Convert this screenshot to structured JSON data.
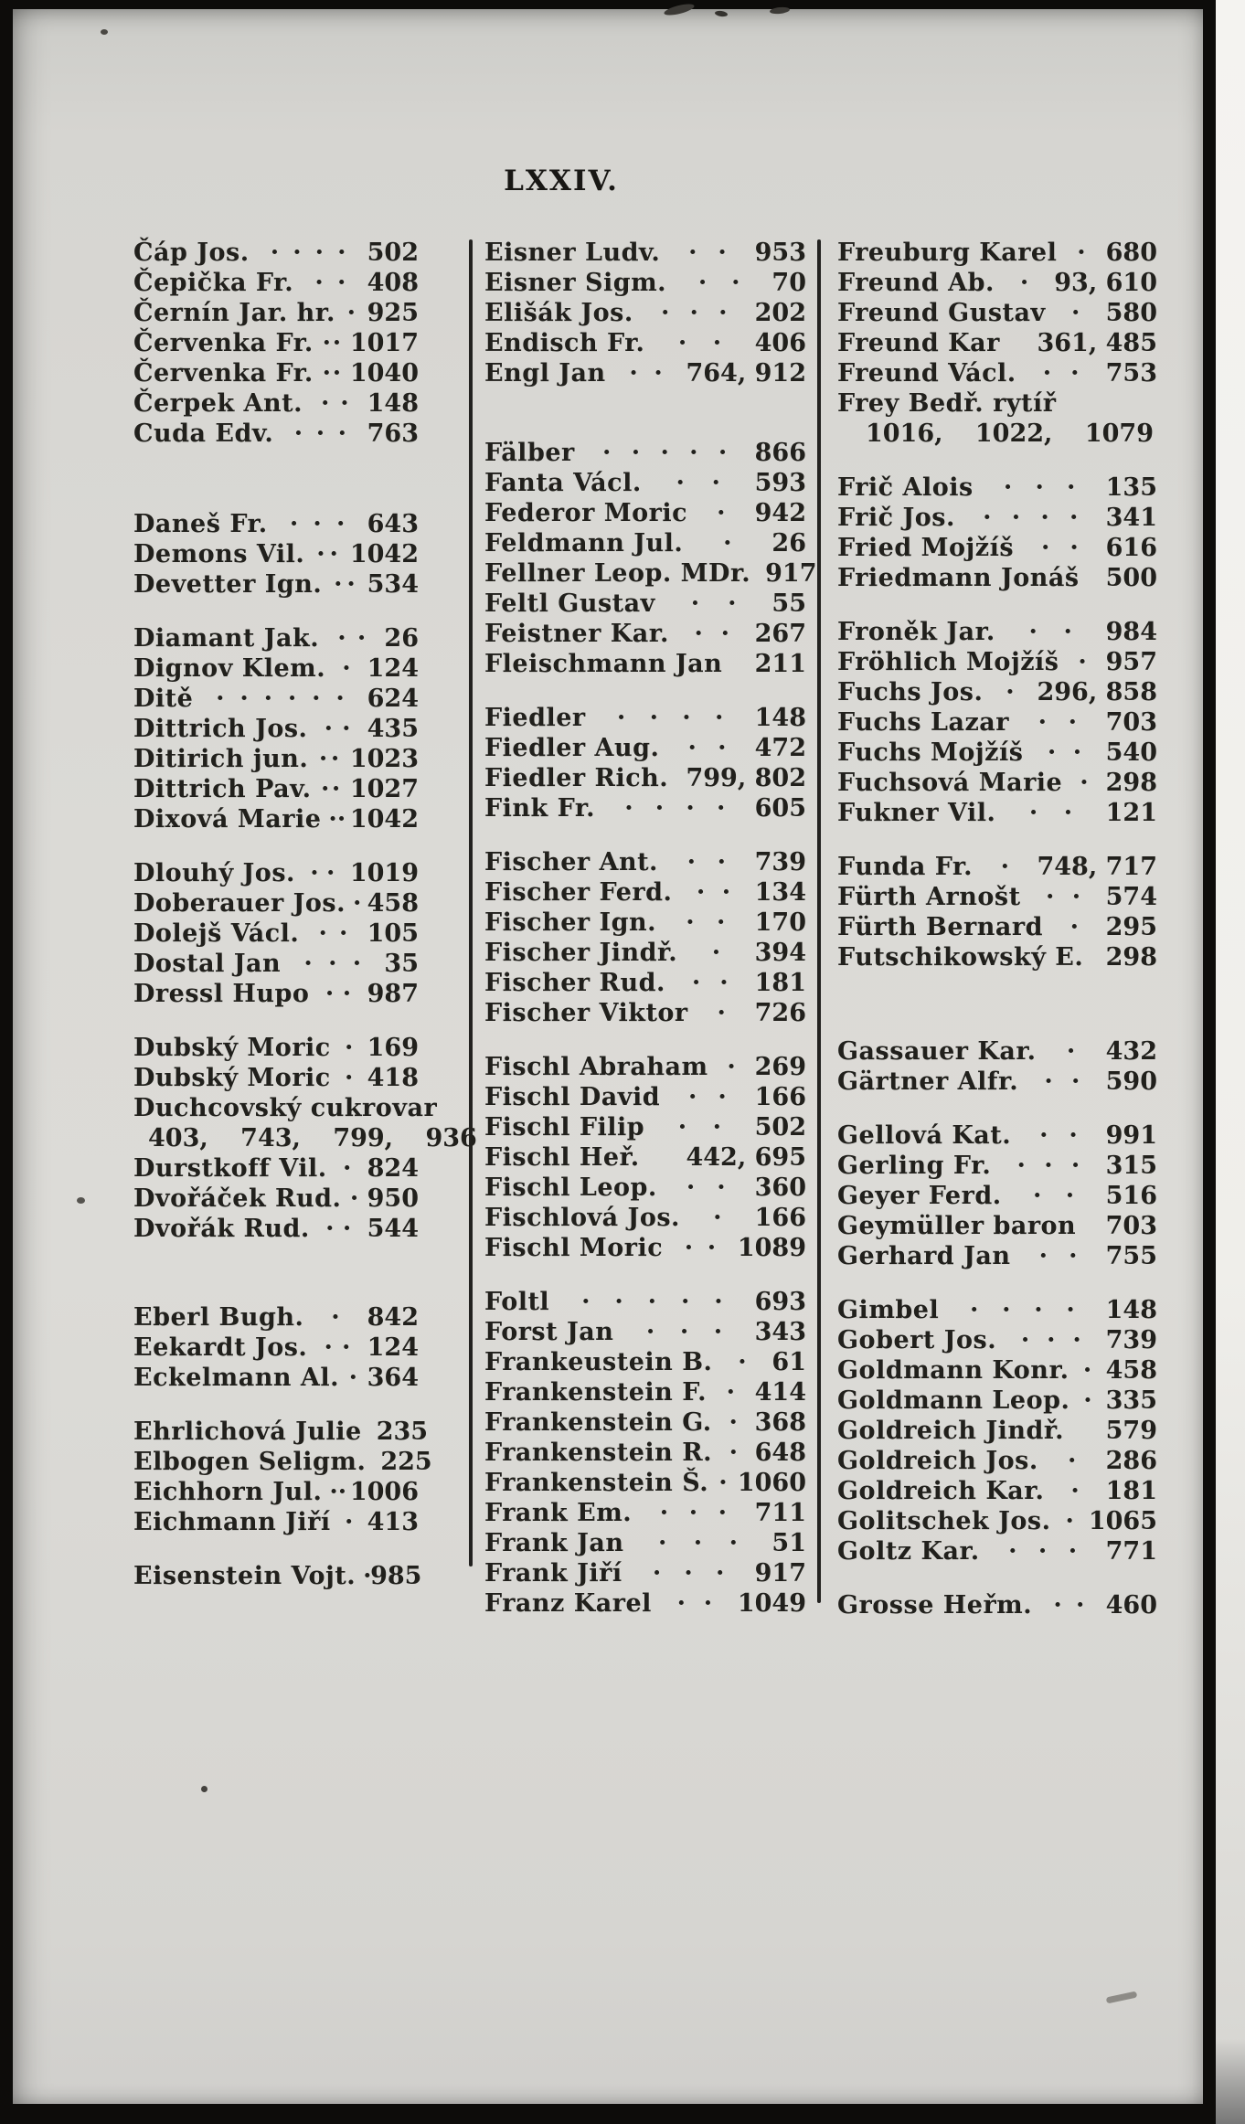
{
  "page_title": "LXXIV.",
  "ink_color": "#21201c",
  "paper_color": "#dbdad6",
  "columns": [
    {
      "groups": [
        [
          {
            "name": "Čáp Jos.",
            "dots": "· · · ·",
            "pages": "502"
          },
          {
            "name": "Čepička Fr.",
            "dots": "· ·",
            "pages": "408"
          },
          {
            "name": "Černín Jar. hr.",
            "dots": "·",
            "pages": "925"
          },
          {
            "name": "Červenka Fr.",
            "dots": "· ·",
            "pages": "1017"
          },
          {
            "name": "Červenka Fr.",
            "dots": "· ·",
            "pages": "1040"
          },
          {
            "name": "Čerpek Ant.",
            "dots": "· ·",
            "pages": "148"
          },
          {
            "name": "Cuda Edv.",
            "dots": "· · ·",
            "pages": "763"
          }
        ],
        [
          {
            "name": "Daneš Fr.",
            "dots": "· · ·",
            "pages": "643"
          },
          {
            "name": "Demons Vil.",
            "dots": "· ·",
            "pages": "1042"
          },
          {
            "name": "Devetter Ign.",
            "dots": "· ·",
            "pages": "534"
          }
        ],
        [
          {
            "name": "Diamant Jak.",
            "dots": "· ·",
            "pages": "26"
          },
          {
            "name": "Dignov Klem.",
            "dots": "·",
            "pages": "124"
          },
          {
            "name": "Ditě",
            "dots": "· · · · · ·",
            "pages": "624"
          },
          {
            "name": "Dittrich Jos.",
            "dots": "· ·",
            "pages": "435"
          },
          {
            "name": "Ditirich jun.",
            "dots": "· ·",
            "pages": "1023"
          },
          {
            "name": "Dittrich Pav.",
            "dots": "· ·",
            "pages": "1027"
          },
          {
            "name": "Dixová Marie",
            "dots": "· ·",
            "pages": "1042"
          }
        ],
        [
          {
            "name": "Dlouhý Jos.",
            "dots": "· ·",
            "pages": "1019"
          },
          {
            "name": "Doberauer Jos.",
            "dots": "·",
            "pages": "458"
          },
          {
            "name": "Dolejš Václ.",
            "dots": "· ·",
            "pages": "105"
          },
          {
            "name": "Dostal Jan",
            "dots": "· · ·",
            "pages": "35"
          },
          {
            "name": "Dressl Hupo",
            "dots": "· ·",
            "pages": "987"
          }
        ],
        [
          {
            "name": "Dubský Moric",
            "dots": "·",
            "pages": "169"
          },
          {
            "name": "Dubský Moric",
            "dots": "·",
            "pages": "418"
          },
          {
            "name": "Duchcovský cukrovar",
            "dots": "",
            "pages": ""
          },
          {
            "name": "",
            "dots": "",
            "pages": "403, 743, 799, 936",
            "cont": true
          },
          {
            "name": "Durstkoff Vil.",
            "dots": "·",
            "pages": "824"
          },
          {
            "name": "Dvořáček Rud.",
            "dots": "·",
            "pages": "950"
          },
          {
            "name": "Dvořák Rud.",
            "dots": "· ·",
            "pages": "544"
          }
        ],
        [
          {
            "name": "Eberl Bugh.",
            "dots": "·",
            "pages": "842"
          },
          {
            "name": "Eekardt Jos.",
            "dots": "· ·",
            "pages": "124"
          },
          {
            "name": "Eckelmann Al.",
            "dots": "·",
            "pages": "364"
          }
        ],
        [
          {
            "name": "Ehrlichová Julie",
            "dots": "",
            "pages": "235"
          },
          {
            "name": "Elbogen Seligm.",
            "dots": "",
            "pages": "225"
          },
          {
            "name": "Eichhorn Jul.",
            "dots": "· ·",
            "pages": "1006"
          },
          {
            "name": "Eichmann Jiří",
            "dots": "·",
            "pages": "413"
          }
        ],
        [
          {
            "name": "Eisenstein Vojt.",
            "dots": "·",
            "pages": "985"
          }
        ]
      ]
    },
    {
      "groups": [
        [
          {
            "name": "Eisner Ludv.",
            "dots": "· ·",
            "pages": "953"
          },
          {
            "name": "Eisner Sigm.",
            "dots": "· ·",
            "pages": "70"
          },
          {
            "name": "Elišák Jos.",
            "dots": "· · ·",
            "pages": "202"
          },
          {
            "name": "Endisch Fr.",
            "dots": "· ·",
            "pages": "406"
          },
          {
            "name": "Engl Jan",
            "dots": "· ·",
            "pages": "764, 912"
          }
        ],
        [
          {
            "name": "Fälber",
            "dots": "· · · · ·",
            "pages": "866"
          },
          {
            "name": "Fanta Václ.",
            "dots": "· ·",
            "pages": "593"
          },
          {
            "name": "Federor Moric",
            "dots": "·",
            "pages": "942"
          },
          {
            "name": "Feldmann Jul.",
            "dots": "·",
            "pages": "26"
          },
          {
            "name": "Fellner Leop. MDr.",
            "dots": "",
            "pages": "917"
          },
          {
            "name": "Feltl Gustav",
            "dots": "· ·",
            "pages": "55"
          },
          {
            "name": "Feistner Kar.",
            "dots": "· ·",
            "pages": "267"
          },
          {
            "name": "Fleischmann Jan",
            "dots": "",
            "pages": "211"
          }
        ],
        [
          {
            "name": "Fiedler",
            "dots": "· · · ·",
            "pages": "148"
          },
          {
            "name": "Fiedler Aug.",
            "dots": "· ·",
            "pages": "472"
          },
          {
            "name": "Fiedler Rich.",
            "dots": "",
            "pages": "799, 802"
          },
          {
            "name": "Fink Fr.",
            "dots": "· · · ·",
            "pages": "605"
          }
        ],
        [
          {
            "name": "Fischer Ant.",
            "dots": "· ·",
            "pages": "739"
          },
          {
            "name": "Fischer Ferd.",
            "dots": "· ·",
            "pages": "134"
          },
          {
            "name": "Fischer Ign.",
            "dots": "· ·",
            "pages": "170"
          },
          {
            "name": "Fischer Jindř.",
            "dots": "·",
            "pages": "394"
          },
          {
            "name": "Fischer Rud.",
            "dots": "· ·",
            "pages": "181"
          },
          {
            "name": "Fischer Viktor",
            "dots": "·",
            "pages": "726"
          }
        ],
        [
          {
            "name": "Fischl Abraham",
            "dots": "·",
            "pages": "269"
          },
          {
            "name": "Fischl David",
            "dots": "· ·",
            "pages": "166"
          },
          {
            "name": "Fischl Filip",
            "dots": "· ·",
            "pages": "502"
          },
          {
            "name": "Fischl Heř.",
            "dots": "",
            "pages": "442, 695"
          },
          {
            "name": "Fischl Leop.",
            "dots": "· ·",
            "pages": "360"
          },
          {
            "name": "Fischlová Jos.",
            "dots": "·",
            "pages": "166"
          },
          {
            "name": "Fischl Moric",
            "dots": "· ·",
            "pages": "1089"
          }
        ],
        [
          {
            "name": "Foltl",
            "dots": "· · · · ·",
            "pages": "693"
          },
          {
            "name": "Forst Jan",
            "dots": "· · ·",
            "pages": "343"
          },
          {
            "name": "Frankeustein B.",
            "dots": "·",
            "pages": "61"
          },
          {
            "name": "Frankenstein F.",
            "dots": "·",
            "pages": "414"
          },
          {
            "name": "Frankenstein G.",
            "dots": "·",
            "pages": "368"
          },
          {
            "name": "Frankenstein R.",
            "dots": "·",
            "pages": "648"
          },
          {
            "name": "Frankenstein Š.",
            "dots": "·",
            "pages": "1060"
          },
          {
            "name": "Frank Em.",
            "dots": "· · ·",
            "pages": "711"
          },
          {
            "name": "Frank Jan",
            "dots": "· · ·",
            "pages": "51"
          },
          {
            "name": "Frank Jiří",
            "dots": "· · ·",
            "pages": "917"
          },
          {
            "name": "Franz Karel",
            "dots": "· ·",
            "pages": "1049"
          }
        ]
      ]
    },
    {
      "groups": [
        [
          {
            "name": "Freuburg Karel",
            "dots": "·",
            "pages": "680"
          },
          {
            "name": "Freund Ab.",
            "dots": "·",
            "pages": "93, 610"
          },
          {
            "name": "Freund Gustav",
            "dots": "·",
            "pages": "580"
          },
          {
            "name": "Freund Kar",
            "dots": "",
            "pages": "361, 485"
          },
          {
            "name": "Freund Václ.",
            "dots": "· ·",
            "pages": "753"
          },
          {
            "name": "Frey Bedř. rytíř",
            "dots": "",
            "pages": ""
          },
          {
            "name": "",
            "dots": "",
            "pages": "1016, 1022, 1079",
            "cont": true
          }
        ],
        [
          {
            "name": "Frič Alois",
            "dots": "· · ·",
            "pages": "135"
          },
          {
            "name": "Frič Jos.",
            "dots": "· · · ·",
            "pages": "341"
          },
          {
            "name": "Fried Mojžíš",
            "dots": "· ·",
            "pages": "616"
          },
          {
            "name": "Friedmann Jonáš",
            "dots": "",
            "pages": "500"
          }
        ],
        [
          {
            "name": "Froněk Jar.",
            "dots": "· ·",
            "pages": "984"
          },
          {
            "name": "Fröhlich Mojžíš",
            "dots": "·",
            "pages": "957"
          },
          {
            "name": "Fuchs Jos.",
            "dots": "·",
            "pages": "296, 858"
          },
          {
            "name": "Fuchs Lazar",
            "dots": "· ·",
            "pages": "703"
          },
          {
            "name": "Fuchs Mojžíš",
            "dots": "· ·",
            "pages": "540"
          },
          {
            "name": "Fuchsová Marie",
            "dots": "·",
            "pages": "298"
          },
          {
            "name": "Fukner Vil.",
            "dots": "· ·",
            "pages": "121"
          }
        ],
        [
          {
            "name": "Funda Fr.",
            "dots": "·",
            "pages": "748, 717"
          },
          {
            "name": "Fürth Arnošt",
            "dots": "· ·",
            "pages": "574"
          },
          {
            "name": "Fürth Bernard",
            "dots": "·",
            "pages": "295"
          },
          {
            "name": "Futschikowský E.",
            "dots": "",
            "pages": "298"
          }
        ],
        [
          {
            "name": "Gassauer Kar.",
            "dots": "·",
            "pages": "432"
          },
          {
            "name": "Gärtner Alfr.",
            "dots": "· ·",
            "pages": "590"
          }
        ],
        [
          {
            "name": "Gellová Kat.",
            "dots": "· ·",
            "pages": "991"
          },
          {
            "name": "Gerling Fr.",
            "dots": "· · ·",
            "pages": "315"
          },
          {
            "name": "Geyer Ferd.",
            "dots": "· ·",
            "pages": "516"
          },
          {
            "name": "Geymüller baron",
            "dots": "",
            "pages": "703"
          },
          {
            "name": "Gerhard Jan",
            "dots": "· ·",
            "pages": "755"
          }
        ],
        [
          {
            "name": "Gimbel",
            "dots": "· · · ·",
            "pages": "148"
          },
          {
            "name": "Gobert Jos.",
            "dots": "· · ·",
            "pages": "739"
          },
          {
            "name": "Goldmann Konr.",
            "dots": "·",
            "pages": "458"
          },
          {
            "name": "Goldmann Leop.",
            "dots": "·",
            "pages": "335"
          },
          {
            "name": "Goldreich Jindř.",
            "dots": "",
            "pages": "579"
          },
          {
            "name": "Goldreich Jos.",
            "dots": "·",
            "pages": "286"
          },
          {
            "name": "Goldreich Kar.",
            "dots": "·",
            "pages": "181"
          },
          {
            "name": "Golitschek Jos.",
            "dots": "·",
            "pages": "1065"
          },
          {
            "name": "Goltz Kar.",
            "dots": "· · ·",
            "pages": "771"
          }
        ],
        [
          {
            "name": "Grosse Heřm.",
            "dots": "· ·",
            "pages": "460"
          }
        ]
      ]
    }
  ]
}
